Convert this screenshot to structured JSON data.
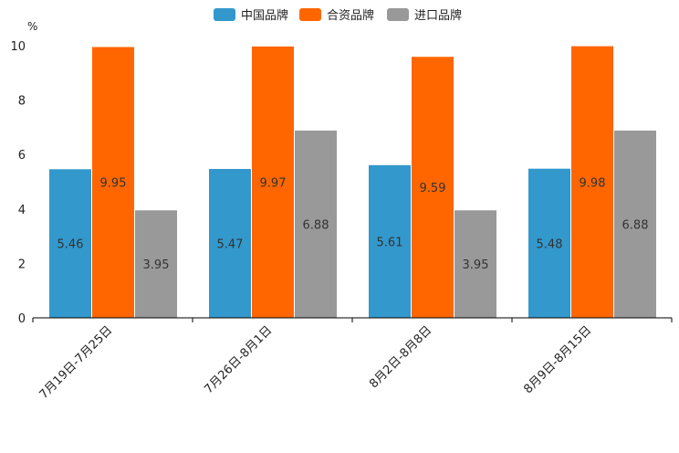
{
  "chart_data": {
    "type": "bar",
    "title": "",
    "ylabel": "%",
    "xlabel": "",
    "ylim": [
      0,
      10
    ],
    "yticks": [
      0,
      2,
      4,
      6,
      8,
      10
    ],
    "categories": [
      "7月19日-7月25日",
      "7月26日-8月1日",
      "8月2日-8月8日",
      "8月9日-8月15日"
    ],
    "series": [
      {
        "name": "中国品牌",
        "color": "#3398cc",
        "values": [
          5.46,
          5.47,
          5.61,
          5.48
        ]
      },
      {
        "name": "合资品牌",
        "color": "#ff6600",
        "values": [
          9.95,
          9.97,
          9.59,
          9.98
        ]
      },
      {
        "name": "进口品牌",
        "color": "#999999",
        "values": [
          3.95,
          6.88,
          3.95,
          6.88
        ]
      }
    ],
    "legend_position": "top-center",
    "grid": false
  }
}
